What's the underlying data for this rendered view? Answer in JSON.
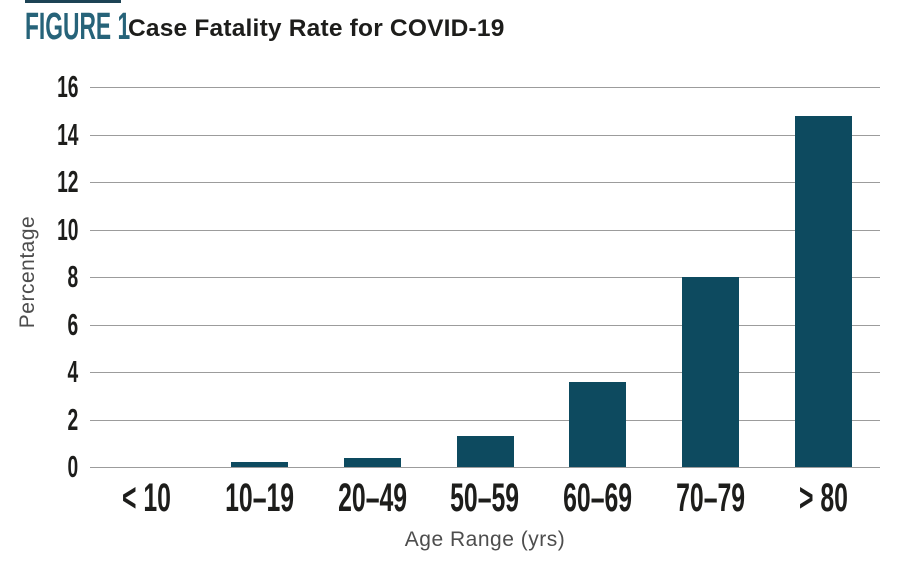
{
  "header": {
    "figure_label": "FIGURE 1",
    "title": "Case Fatality Rate for COVID-19"
  },
  "colors": {
    "bar": "#0d4a5f",
    "figure_label": "#266379",
    "title_text": "#1d1d1b",
    "gridline": "#9c9c9c",
    "tick_text": "#1d1d1b",
    "axis_title_text": "#4d4d4d",
    "top_rule": "#1d4355"
  },
  "chart_data": {
    "type": "bar",
    "title": "Case Fatality Rate for COVID-19",
    "categories": [
      "< 10",
      "10–19",
      "20–49",
      "50–59",
      "60–69",
      "70–79",
      "> 80"
    ],
    "values": [
      0,
      0.2,
      0.4,
      1.3,
      3.6,
      8.0,
      14.8
    ],
    "xlabel": "Age Range (yrs)",
    "ylabel": "Percentage",
    "ylim": [
      0,
      16
    ],
    "yticks": [
      0,
      2,
      4,
      6,
      8,
      10,
      12,
      14,
      16
    ],
    "grid": "horizontal-only",
    "legend": "none"
  }
}
